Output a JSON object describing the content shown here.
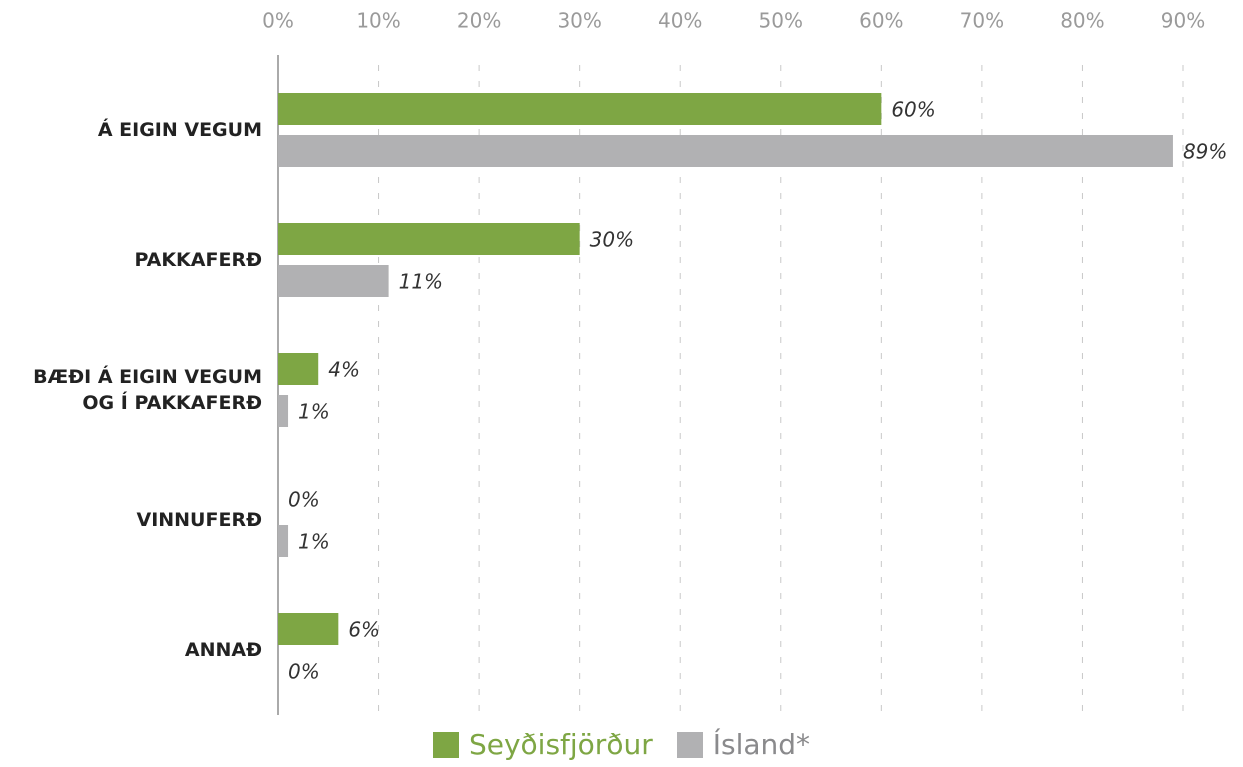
{
  "chart_data": {
    "type": "bar",
    "orientation": "horizontal",
    "categories": [
      "Á EIGIN VEGUM",
      "PAKKAFERÐ",
      "BÆÐI Á EIGIN VEGUM OG Í PAKKAFERÐ",
      "VINNUFERÐ",
      "ANNAÐ"
    ],
    "series": [
      {
        "name": "Seyðisfjörður",
        "color": "#7ea644",
        "values": [
          60,
          30,
          4,
          0,
          6
        ],
        "value_labels": [
          "60%",
          "30%",
          "4%",
          "0%",
          "6%"
        ]
      },
      {
        "name": "Ísland*",
        "color": "#b1b1b3",
        "values": [
          89,
          11,
          1,
          1,
          0
        ],
        "value_labels": [
          "89%",
          "11%",
          "1%",
          "1%",
          "0%"
        ]
      }
    ],
    "xlim": [
      0,
      90
    ],
    "xticks": [
      {
        "value": 0,
        "label": "0%"
      },
      {
        "value": 10,
        "label": "10%"
      },
      {
        "value": 20,
        "label": "20%"
      },
      {
        "value": 30,
        "label": "30%"
      },
      {
        "value": 40,
        "label": "40%"
      },
      {
        "value": 50,
        "label": "50%"
      },
      {
        "value": 60,
        "label": "60%"
      },
      {
        "value": 70,
        "label": "70%"
      },
      {
        "value": 80,
        "label": "80%"
      },
      {
        "value": 90,
        "label": "90%"
      }
    ],
    "grid": true,
    "legend": "bottom"
  }
}
